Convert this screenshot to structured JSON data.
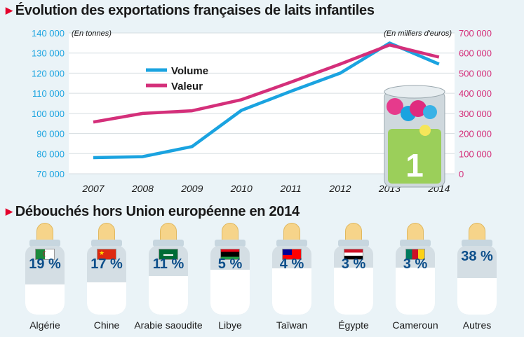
{
  "title_chart": "Évolution des exportations françaises de laits infantiles",
  "title_bottles": "Débouchés hors Union européenne en 2014",
  "chart_data": {
    "type": "line",
    "title": "Évolution des exportations françaises de laits infantiles",
    "x": [
      "2007",
      "2008",
      "2009",
      "2010",
      "2011",
      "2012",
      "2013",
      "2014"
    ],
    "y_left_label": "(En tonnes)",
    "y_right_label": "(En milliers d'euros)",
    "y_left_ticks": [
      "140 000",
      "130 000",
      "120 000",
      "110 000",
      "100 000",
      "90 000",
      "80 000",
      "70 000"
    ],
    "y_right_ticks": [
      "700 000",
      "600 000",
      "500 000",
      "400 000",
      "300 000",
      "200 000",
      "100 000",
      "0"
    ],
    "ylim_left": [
      70000,
      140000
    ],
    "ylim_right": [
      0,
      700000
    ],
    "series": [
      {
        "name": "Volume",
        "axis": "left",
        "color": "#1aa3e0",
        "values": [
          78000,
          78500,
          83500,
          101500,
          111000,
          120000,
          135000,
          124500
        ]
      },
      {
        "name": "Valeur",
        "axis": "right",
        "color": "#d42f7a",
        "values": [
          257000,
          300000,
          313000,
          368000,
          455000,
          545000,
          640000,
          580000
        ]
      }
    ],
    "legend": "top-left",
    "grid": true
  },
  "destinations": [
    {
      "country": "Algérie",
      "pct": "19 %",
      "value": 19
    },
    {
      "country": "Chine",
      "pct": "17 %",
      "value": 17
    },
    {
      "country": "Arabie saoudite",
      "pct": "11 %",
      "value": 11
    },
    {
      "country": "Libye",
      "pct": "5 %",
      "value": 5
    },
    {
      "country": "Taïwan",
      "pct": "4 %",
      "value": 4
    },
    {
      "country": "Égypte",
      "pct": "3 %",
      "value": 3
    },
    {
      "country": "Cameroun",
      "pct": "3 %",
      "value": 3
    },
    {
      "country": "Autres",
      "pct": "38 %",
      "value": 38
    }
  ],
  "colors": {
    "accent": "#e4002b",
    "volume": "#1aa3e0",
    "valeur": "#d42f7a",
    "pct_text": "#0c4e8a"
  }
}
